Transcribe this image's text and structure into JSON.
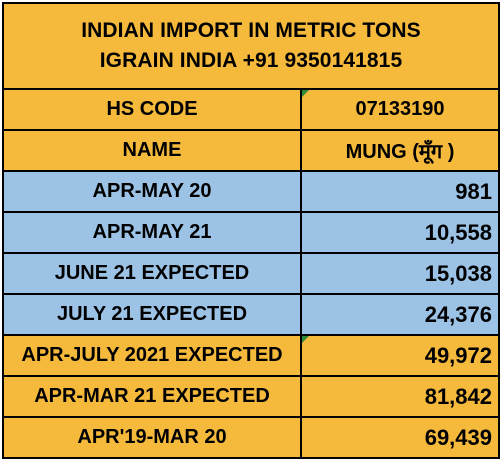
{
  "colors": {
    "orange": "#f5b93c",
    "blue": "#9cc3e6",
    "border": "#000000",
    "marker_green": "#2e8b3a"
  },
  "header": {
    "title_line1": "INDIAN IMPORT IN METRIC TONS",
    "title_line2": "IGRAIN INDIA +91 9350141815"
  },
  "rows": [
    {
      "label": "HS CODE",
      "value": "07133190",
      "bg": "orange",
      "align": "center"
    },
    {
      "label": "NAME",
      "value": "MUNG (मूँग )",
      "bg": "orange",
      "align": "center"
    },
    {
      "label": "APR-MAY 20",
      "value": "981",
      "bg": "blue",
      "align": "right"
    },
    {
      "label": "APR-MAY 21",
      "value": "10,558",
      "bg": "blue",
      "align": "right"
    },
    {
      "label": "JUNE 21 EXPECTED",
      "value": "15,038",
      "bg": "blue",
      "align": "right"
    },
    {
      "label": "JULY 21 EXPECTED",
      "value": "24,376",
      "bg": "blue",
      "align": "right"
    },
    {
      "label": "APR-JULY 2021 EXPECTED",
      "value": "49,972",
      "bg": "orange",
      "align": "right"
    },
    {
      "label": "APR-MAR 21 EXPECTED",
      "value": "81,842",
      "bg": "orange",
      "align": "right"
    },
    {
      "label": "APR'19-MAR 20",
      "value": "69,439",
      "bg": "orange",
      "align": "right"
    }
  ]
}
